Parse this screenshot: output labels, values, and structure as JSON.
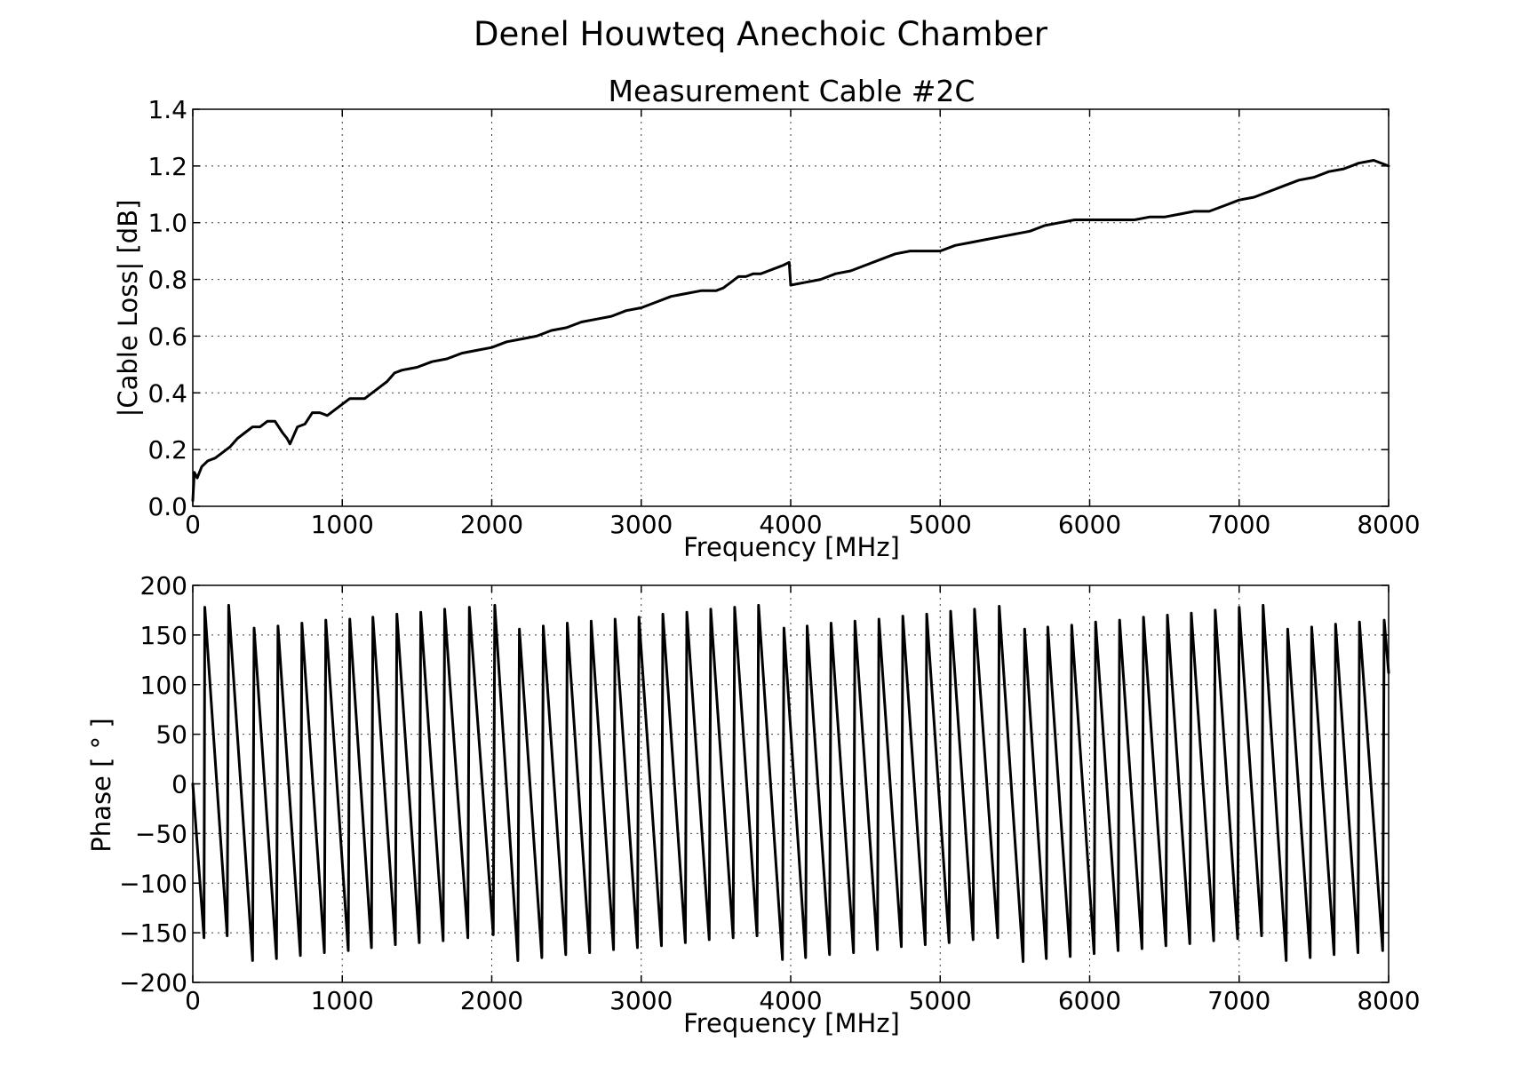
{
  "figure": {
    "suptitle": "Denel Houwteq Anechoic Chamber"
  },
  "chart_data": [
    {
      "type": "line",
      "title": "Measurement Cable #2C",
      "xlabel": "Frequency [MHz]",
      "ylabel": "|Cable Loss| [dB]",
      "xlim": [
        0,
        8000
      ],
      "ylim": [
        0.0,
        1.4
      ],
      "xticks": [
        0,
        1000,
        2000,
        3000,
        4000,
        5000,
        6000,
        7000,
        8000
      ],
      "xtick_labels": [
        "0",
        "1000",
        "2000",
        "3000",
        "4000",
        "5000",
        "6000",
        "7000",
        "8000"
      ],
      "yticks": [
        0.0,
        0.2,
        0.4,
        0.6,
        0.8,
        1.0,
        1.2,
        1.4
      ],
      "ytick_labels": [
        "0.0",
        "0.2",
        "0.4",
        "0.6",
        "0.8",
        "1.0",
        "1.2",
        "1.4"
      ],
      "grid": true,
      "color": "#000000",
      "series": [
        {
          "x": [
            0,
            10,
            30,
            60,
            100,
            150,
            200,
            250,
            300,
            350,
            400,
            450,
            500,
            550,
            600,
            630,
            650,
            700,
            750,
            800,
            850,
            900,
            950,
            1000,
            1050,
            1100,
            1150,
            1200,
            1250,
            1300,
            1350,
            1400,
            1500,
            1600,
            1700,
            1800,
            1900,
            2000,
            2100,
            2200,
            2300,
            2400,
            2500,
            2600,
            2700,
            2800,
            2900,
            3000,
            3100,
            3200,
            3300,
            3400,
            3500,
            3550,
            3600,
            3650,
            3700,
            3750,
            3800,
            3850,
            3900,
            3950,
            3990,
            4000,
            4100,
            4200,
            4300,
            4400,
            4500,
            4600,
            4700,
            4800,
            4900,
            5000,
            5100,
            5200,
            5300,
            5400,
            5500,
            5600,
            5700,
            5800,
            5900,
            6000,
            6100,
            6200,
            6300,
            6400,
            6500,
            6600,
            6700,
            6800,
            6900,
            7000,
            7100,
            7200,
            7300,
            7400,
            7500,
            7600,
            7700,
            7800,
            7900,
            8000
          ],
          "y": [
            0.02,
            0.12,
            0.1,
            0.14,
            0.16,
            0.17,
            0.19,
            0.21,
            0.24,
            0.26,
            0.28,
            0.28,
            0.3,
            0.3,
            0.26,
            0.24,
            0.22,
            0.28,
            0.29,
            0.33,
            0.33,
            0.32,
            0.34,
            0.36,
            0.38,
            0.38,
            0.38,
            0.4,
            0.42,
            0.44,
            0.47,
            0.48,
            0.49,
            0.51,
            0.52,
            0.54,
            0.55,
            0.56,
            0.58,
            0.59,
            0.6,
            0.62,
            0.63,
            0.65,
            0.66,
            0.67,
            0.69,
            0.7,
            0.72,
            0.74,
            0.75,
            0.76,
            0.76,
            0.77,
            0.79,
            0.81,
            0.81,
            0.82,
            0.82,
            0.83,
            0.84,
            0.85,
            0.86,
            0.78,
            0.79,
            0.8,
            0.82,
            0.83,
            0.85,
            0.87,
            0.89,
            0.9,
            0.9,
            0.9,
            0.92,
            0.93,
            0.94,
            0.95,
            0.96,
            0.97,
            0.99,
            1.0,
            1.01,
            1.01,
            1.01,
            1.01,
            1.01,
            1.02,
            1.02,
            1.03,
            1.04,
            1.04,
            1.06,
            1.08,
            1.09,
            1.11,
            1.13,
            1.15,
            1.16,
            1.18,
            1.19,
            1.21,
            1.22,
            1.2
          ]
        }
      ]
    },
    {
      "type": "line",
      "title": "",
      "xlabel": "Frequency [MHz]",
      "ylabel": "Phase [ ° ]",
      "xlim": [
        0,
        8000
      ],
      "ylim": [
        -200,
        200
      ],
      "xticks": [
        0,
        1000,
        2000,
        3000,
        4000,
        5000,
        6000,
        7000,
        8000
      ],
      "xtick_labels": [
        "0",
        "1000",
        "2000",
        "3000",
        "4000",
        "5000",
        "6000",
        "7000",
        "8000"
      ],
      "yticks": [
        -200,
        -150,
        -100,
        -50,
        0,
        50,
        100,
        150,
        200
      ],
      "ytick_labels": [
        "−200",
        "−150",
        "−100",
        "−50",
        "0",
        "50",
        "100",
        "150",
        "200"
      ],
      "grid": true,
      "color": "#000000",
      "series": [
        {
          "x": [
            0,
            75,
            80,
            230,
            240,
            400,
            410,
            560,
            570,
            720,
            730,
            880,
            890,
            1040,
            1050,
            1195,
            1205,
            1355,
            1365,
            1515,
            1525,
            1675,
            1685,
            1840,
            1850,
            2010,
            2020,
            2175,
            2185,
            2335,
            2345,
            2495,
            2505,
            2655,
            2665,
            2815,
            2825,
            2975,
            2985,
            3135,
            3145,
            3295,
            3305,
            3455,
            3465,
            3615,
            3625,
            3775,
            3785,
            3945,
            3955,
            4100,
            4110,
            4260,
            4270,
            4420,
            4430,
            4580,
            4590,
            4740,
            4750,
            4900,
            4910,
            5060,
            5070,
            5220,
            5230,
            5385,
            5395,
            5555,
            5565,
            5710,
            5720,
            5870,
            5880,
            6030,
            6040,
            6190,
            6200,
            6350,
            6360,
            6510,
            6520,
            6670,
            6680,
            6830,
            6840,
            6990,
            7000,
            7150,
            7160,
            7315,
            7325,
            7475,
            7485,
            7635,
            7645,
            7795,
            7805,
            7960,
            7970,
            8000
          ],
          "y": [
            0,
            -155,
            178,
            -153,
            180,
            -178,
            157,
            -176,
            159,
            -173,
            162,
            -170,
            165,
            -168,
            166,
            -165,
            168,
            -162,
            171,
            -160,
            173,
            -158,
            176,
            -155,
            178,
            -152,
            180,
            -178,
            156,
            -175,
            159,
            -172,
            162,
            -170,
            164,
            -167,
            166,
            -165,
            168,
            -163,
            171,
            -160,
            173,
            -157,
            176,
            -155,
            178,
            -153,
            180,
            -177,
            157,
            -175,
            159,
            -172,
            162,
            -170,
            164,
            -167,
            166,
            -164,
            169,
            -162,
            171,
            -160,
            174,
            -157,
            176,
            -155,
            179,
            -179,
            156,
            -176,
            158,
            -174,
            160,
            -171,
            163,
            -168,
            165,
            -166,
            168,
            -163,
            170,
            -161,
            172,
            -158,
            175,
            -156,
            178,
            -153,
            180,
            -178,
            156,
            -175,
            158,
            -172,
            161,
            -170,
            163,
            -168,
            165,
            112
          ]
        }
      ]
    }
  ]
}
